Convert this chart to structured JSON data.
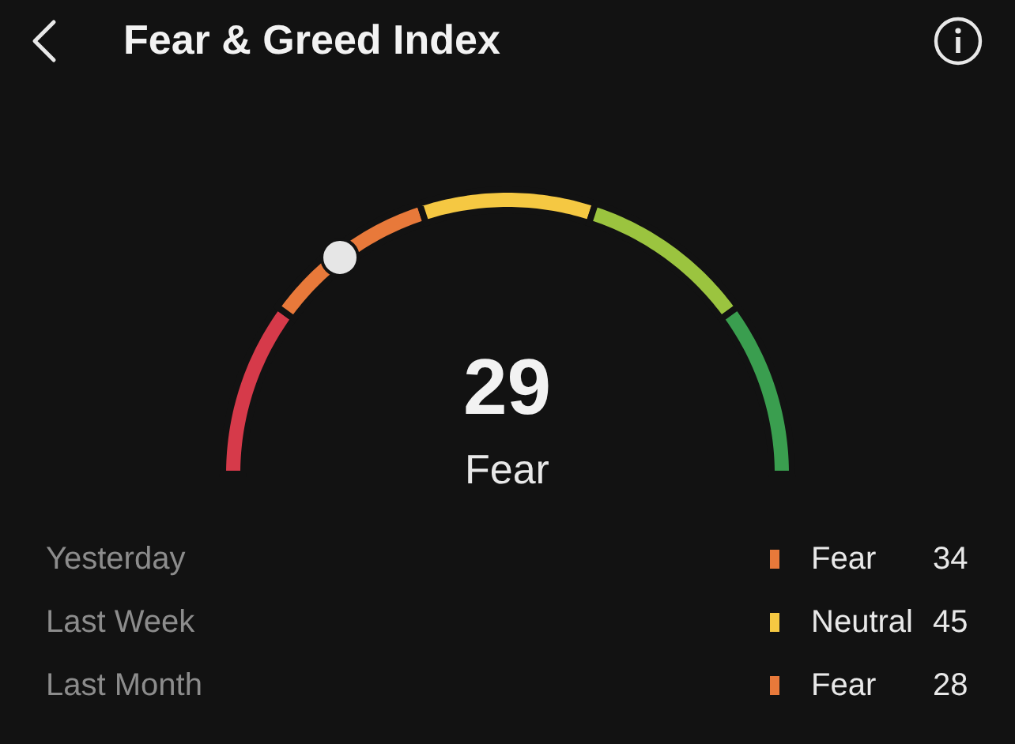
{
  "chart_data": {
    "type": "donut",
    "title": "Fear & Greed Index",
    "categories": [
      null,
      null,
      null,
      null,
      null
    ],
    "values": [
      20,
      20,
      20,
      20,
      20
    ],
    "colors": [
      "#d63a4a",
      "#e8793a",
      "#f5c842",
      "#9bc43f",
      "#3a9e4f"
    ],
    "annotations": [
      "29",
      "Fear",
      "Yesterday",
      "Fear",
      "34",
      "Last Week",
      "Neutral",
      "45",
      "Last Month",
      "Fear",
      "28"
    ]
  }
}
